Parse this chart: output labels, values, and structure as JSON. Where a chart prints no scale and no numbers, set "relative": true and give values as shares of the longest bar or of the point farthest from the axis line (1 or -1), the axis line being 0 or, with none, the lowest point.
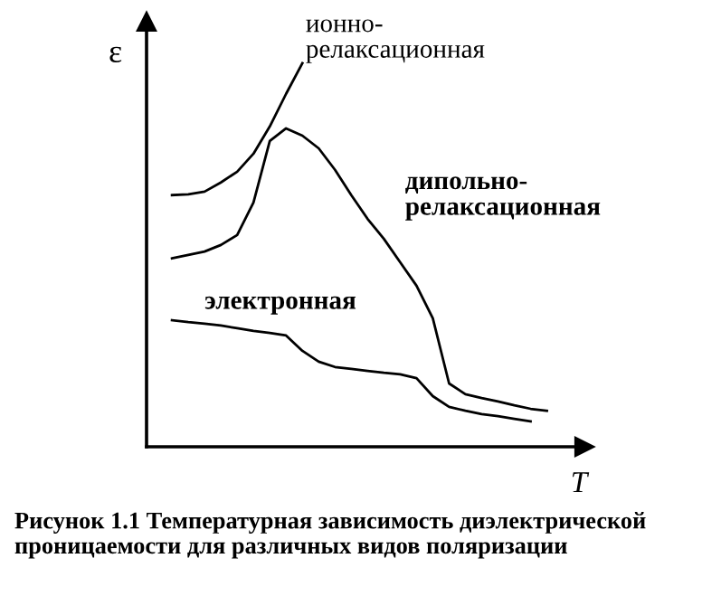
{
  "chart_data": {
    "type": "line",
    "relative": true,
    "legend": false,
    "marker": "none",
    "line_style": "solid",
    "ylabel": "ε",
    "xlabel": "T",
    "categories": [
      null,
      null,
      null,
      null,
      null,
      null,
      null,
      null,
      null,
      null,
      null,
      null,
      null,
      null,
      null,
      null,
      null,
      null,
      null,
      null,
      null,
      null,
      null,
      null
    ],
    "series": [
      {
        "name": "ионно-\nрелаксационная",
        "color": "#000000",
        "values": [
          0.656,
          0.658,
          0.665,
          0.689,
          0.717,
          0.764,
          0.835,
          0.92,
          1.0,
          null,
          null,
          null,
          null,
          null,
          null,
          null,
          null,
          null,
          null,
          null,
          null,
          null,
          null,
          null
        ]
      },
      {
        "name": "дипольно-\nрелаксационная",
        "color": "#000000",
        "values": [
          0.491,
          0.5,
          0.509,
          0.526,
          0.552,
          0.637,
          0.797,
          0.83,
          0.811,
          0.778,
          0.722,
          0.656,
          0.594,
          0.542,
          0.481,
          0.42,
          0.335,
          0.165,
          0.137,
          0.127,
          0.118,
          0.108,
          0.099,
          0.094
        ]
      },
      {
        "name": "электронная",
        "color": "#000000",
        "values": [
          0.33,
          0.325,
          0.321,
          0.316,
          0.309,
          0.302,
          0.297,
          0.29,
          0.25,
          0.222,
          0.208,
          0.203,
          0.198,
          0.193,
          0.189,
          0.179,
          0.132,
          0.104,
          0.094,
          0.085,
          0.08,
          0.073,
          0.066,
          null
        ]
      }
    ],
    "annotations": [
      "Рисунок 1.1 Температурная зависимость диэлектрической проницаемости для различных видов поляризации"
    ]
  }
}
